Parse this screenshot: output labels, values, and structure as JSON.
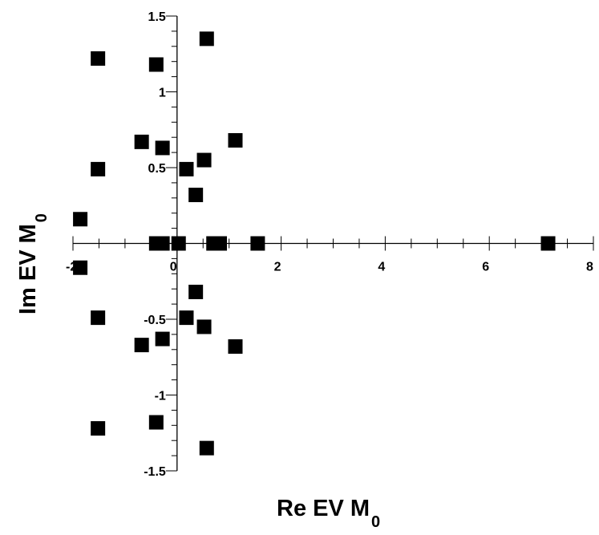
{
  "chart_data": {
    "type": "scatter",
    "title": "",
    "xlabel": {
      "main": "Re EV M",
      "sub": "0"
    },
    "ylabel": {
      "main": "Im EV M",
      "sub": "0"
    },
    "xlim": [
      -2,
      8
    ],
    "ylim": [
      -1.5,
      1.5
    ],
    "x_ticks": [
      -2,
      0,
      2,
      4,
      6,
      8
    ],
    "y_ticks": [
      -1.5,
      -1,
      -0.5,
      0.5,
      1,
      1.5
    ],
    "x_tick_labels": [
      "-2",
      "0",
      "2",
      "4",
      "6",
      "8"
    ],
    "y_tick_labels": [
      "-1.5",
      "-1",
      "-0.5",
      "0.5",
      "1",
      "1.5"
    ],
    "grid": false,
    "marker": "square",
    "marker_color": "#000000",
    "series": [
      {
        "points": [
          {
            "x": 0.57,
            "y": 1.35
          },
          {
            "x": -1.52,
            "y": 1.22
          },
          {
            "x": -0.4,
            "y": 1.18
          },
          {
            "x": 1.12,
            "y": 0.68
          },
          {
            "x": -0.68,
            "y": 0.67
          },
          {
            "x": -0.28,
            "y": 0.63
          },
          {
            "x": 0.52,
            "y": 0.55
          },
          {
            "x": -1.52,
            "y": 0.49
          },
          {
            "x": 0.18,
            "y": 0.49
          },
          {
            "x": 0.36,
            "y": 0.32
          },
          {
            "x": -1.86,
            "y": 0.16
          },
          {
            "x": -0.4,
            "y": 0.0
          },
          {
            "x": -0.28,
            "y": 0.0
          },
          {
            "x": 0.03,
            "y": 0.0
          },
          {
            "x": 0.7,
            "y": 0.0
          },
          {
            "x": 0.82,
            "y": 0.0
          },
          {
            "x": 1.55,
            "y": 0.0
          },
          {
            "x": 7.13,
            "y": 0.0
          },
          {
            "x": -1.86,
            "y": -0.16
          },
          {
            "x": 0.36,
            "y": -0.32
          },
          {
            "x": 0.18,
            "y": -0.49
          },
          {
            "x": -1.52,
            "y": -0.49
          },
          {
            "x": 0.52,
            "y": -0.55
          },
          {
            "x": -0.28,
            "y": -0.63
          },
          {
            "x": -0.68,
            "y": -0.67
          },
          {
            "x": 1.12,
            "y": -0.68
          },
          {
            "x": -0.4,
            "y": -1.18
          },
          {
            "x": -1.52,
            "y": -1.22
          },
          {
            "x": 0.57,
            "y": -1.35
          }
        ]
      }
    ]
  }
}
